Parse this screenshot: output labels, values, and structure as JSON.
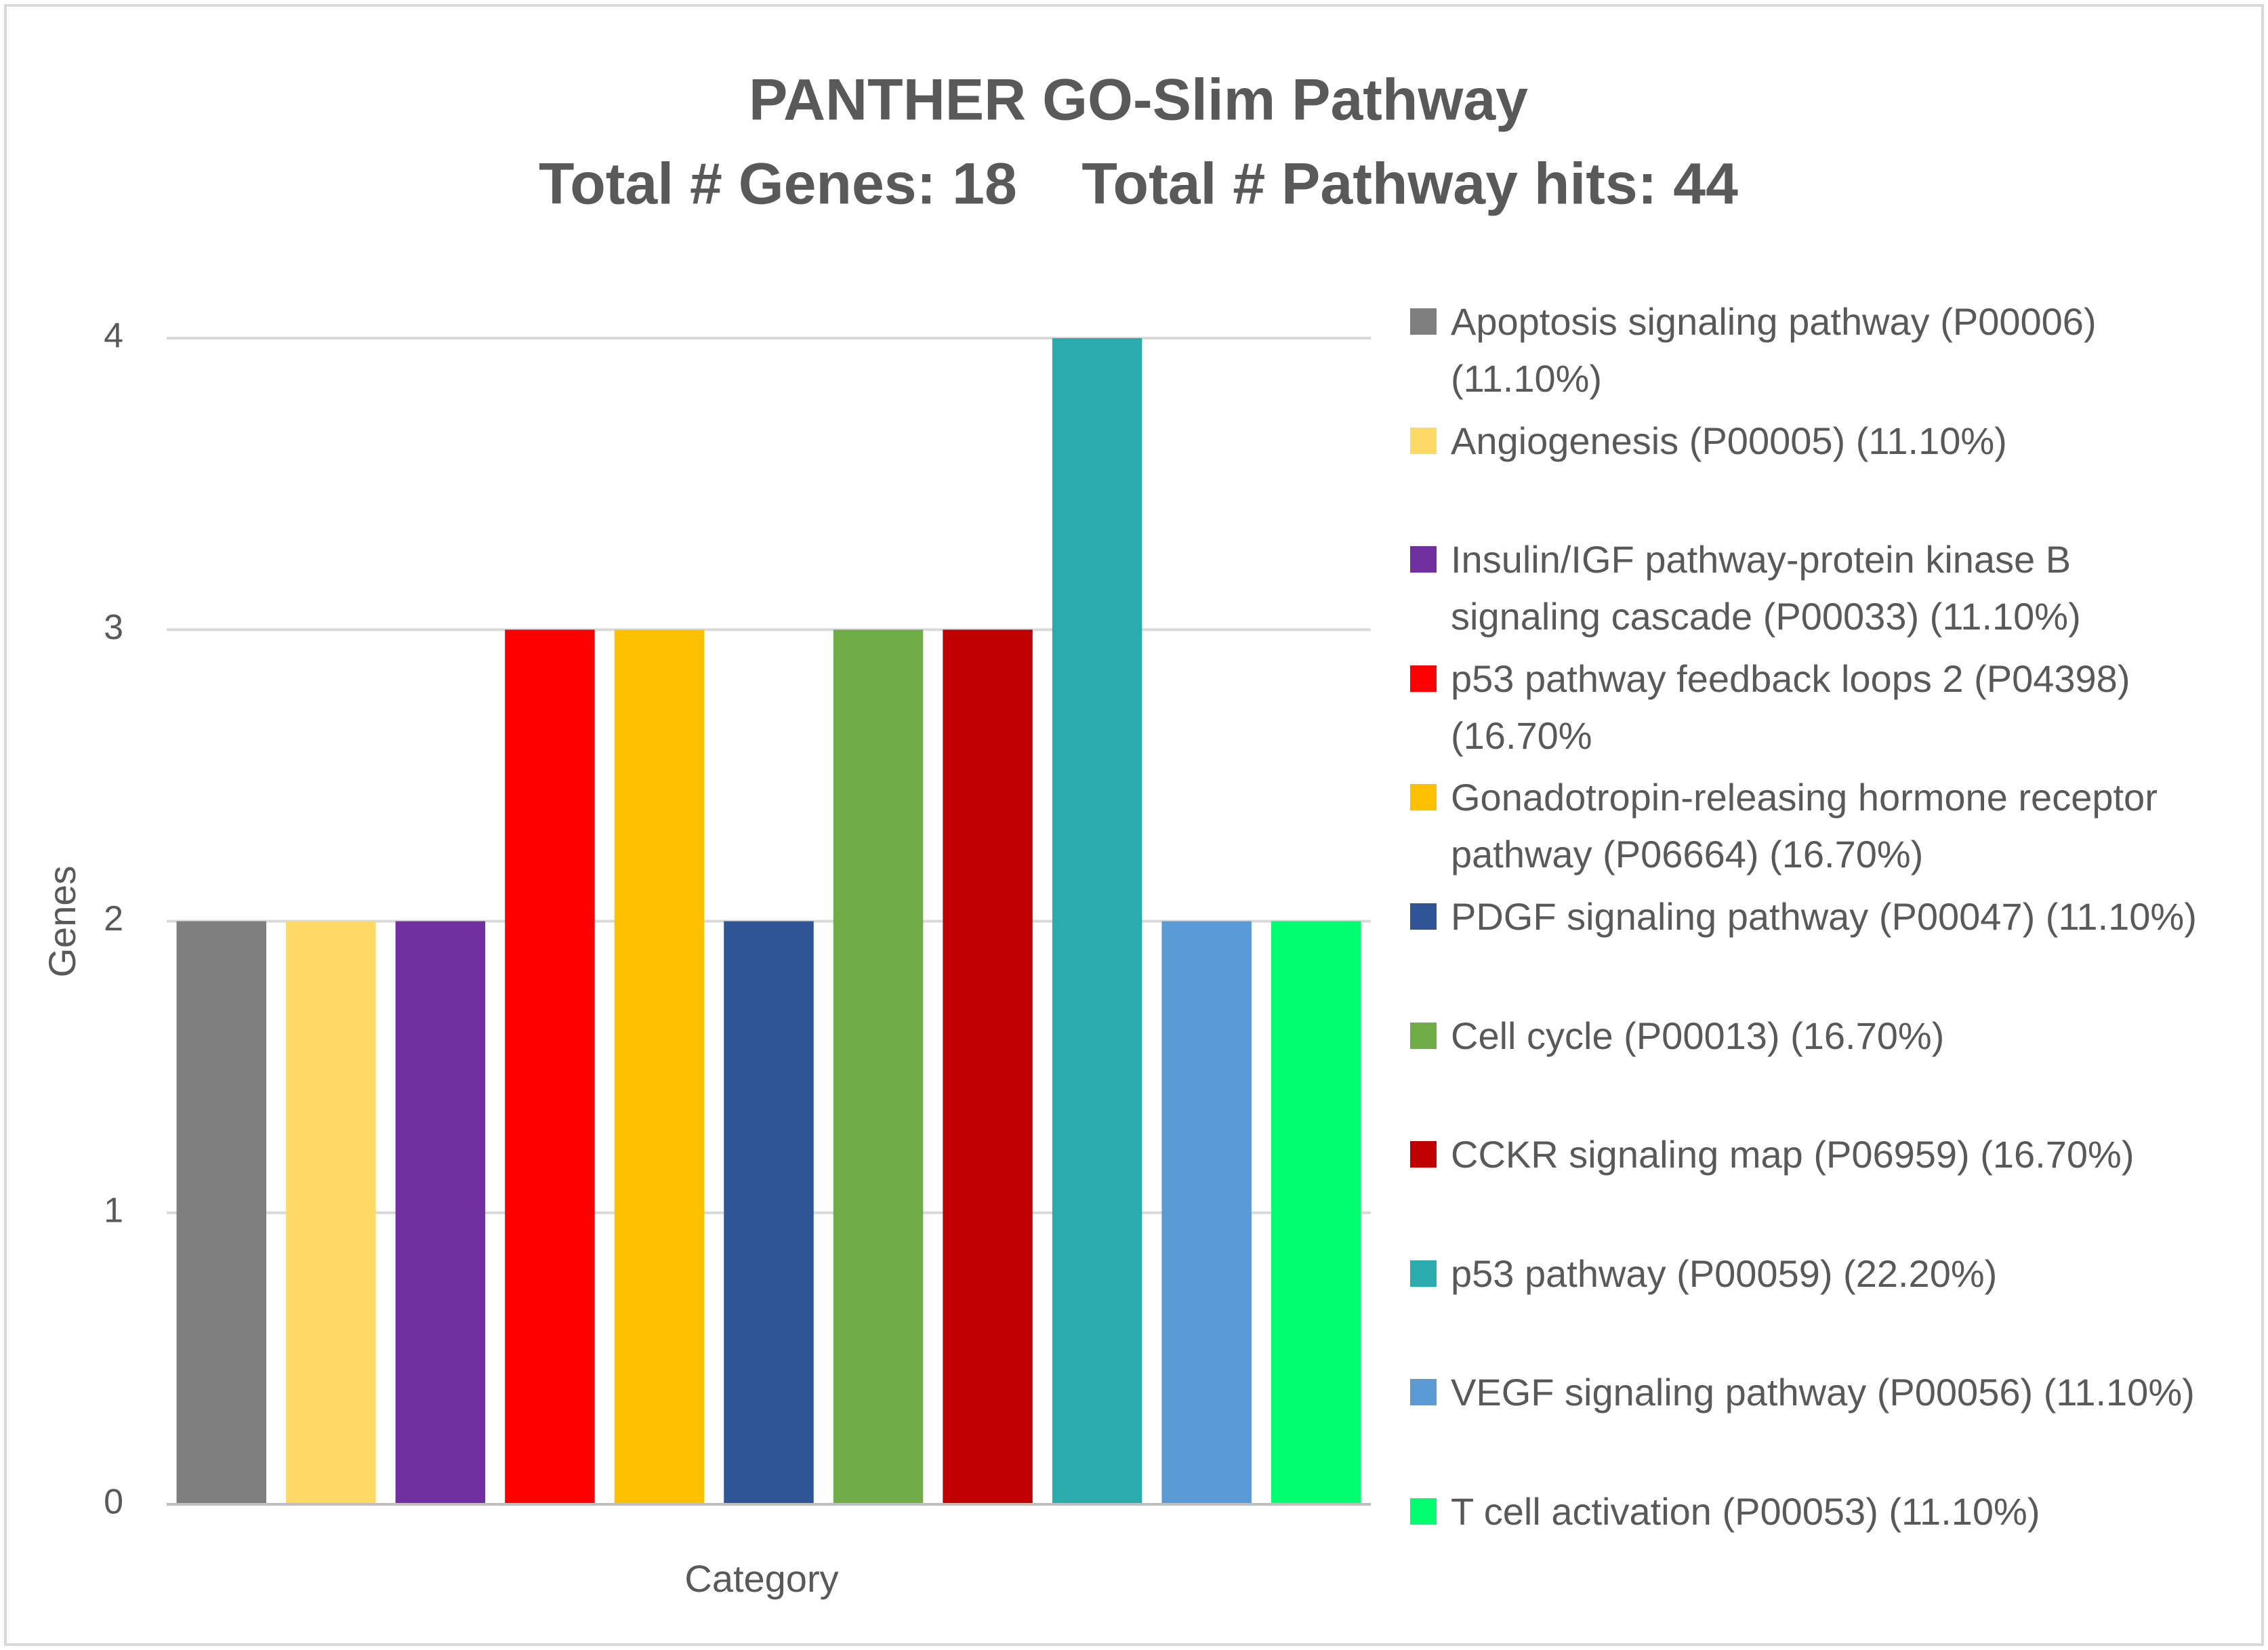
{
  "chart_data": {
    "type": "bar",
    "title": "PANTHER GO-Slim Pathway",
    "subtitle": "Total # Genes: 18    Total # Pathway hits: 44",
    "x_label": "Category",
    "y_label": "Genes",
    "categories": [
      null
    ],
    "series": [
      {
        "name": "Apoptosis signaling pathway (P00006) (11.10%)",
        "color": "#7f7f7f",
        "values": [
          2
        ]
      },
      {
        "name": "Angiogenesis (P00005) (11.10%)",
        "color": "#ffd966",
        "values": [
          2
        ]
      },
      {
        "name": "Insulin/IGF pathway-protein kinase B signaling cascade (P00033) (11.10%)",
        "color": "#7030a0",
        "values": [
          2
        ]
      },
      {
        "name": "p53 pathway feedback loops 2 (P04398) (16.70%",
        "color": "#ff0000",
        "values": [
          3
        ]
      },
      {
        "name": "Gonadotropin-releasing hormone receptor pathway (P06664) (16.70%)",
        "color": "#ffc000",
        "values": [
          3
        ]
      },
      {
        "name": "PDGF signaling pathway (P00047) (11.10%)",
        "color": "#2f5597",
        "values": [
          2
        ]
      },
      {
        "name": "Cell cycle (P00013) (16.70%)",
        "color": "#70ad47",
        "values": [
          3
        ]
      },
      {
        "name": "CCKR signaling map (P06959) (16.70%)",
        "color": "#c00000",
        "values": [
          3
        ]
      },
      {
        "name": "p53 pathway (P00059) (22.20%)",
        "color": "#2aacac",
        "values": [
          4
        ]
      },
      {
        "name": "VEGF signaling pathway (P00056) (11.10%)",
        "color": "#5b9bd5",
        "values": [
          2
        ]
      },
      {
        "name": "T cell activation (P00053) (11.10%)",
        "color": "#00ff6e",
        "values": [
          2
        ]
      }
    ],
    "ylim": [
      0,
      4
    ],
    "yticks": [
      0,
      1,
      2,
      3,
      4
    ],
    "grid": true,
    "legend": "right"
  }
}
